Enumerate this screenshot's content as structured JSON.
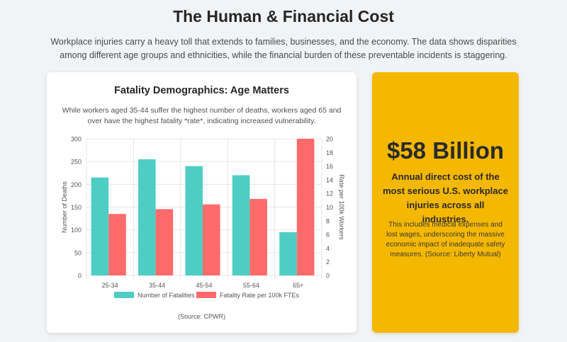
{
  "header": {
    "title": "The Human & Financial Cost",
    "intro": "Workplace injuries carry a heavy toll that extends to families, businesses, and the economy. The data shows disparities among different age groups and ethnicities, while the financial burden of these preventable incidents is staggering."
  },
  "chart_card": {
    "title": "Fatality Demographics: Age Matters",
    "subtitle": "While workers aged 35-44 suffer the highest number of deaths, workers aged 65 and over have the highest fatality *rate*, indicating increased vulnerability.",
    "source": "(Source: CPWR)"
  },
  "chart_data": {
    "type": "bar",
    "categories": [
      "25-34",
      "35-44",
      "45-54",
      "55-64",
      "65+"
    ],
    "series": [
      {
        "name": "Number of Fatalities",
        "axis": "left",
        "color": "#4ecdc4",
        "values": [
          215,
          255,
          240,
          220,
          95
        ]
      },
      {
        "name": "Fatality Rate per 100k FTEs",
        "axis": "right",
        "color": "#ff6b6b",
        "values": [
          9,
          9.7,
          10.4,
          11.2,
          20
        ]
      }
    ],
    "ylabel": "Number of Deaths",
    "y2label": "Rate per 100k Workers",
    "ylim": [
      0,
      300
    ],
    "y2lim": [
      0,
      20
    ],
    "yticks": [
      0,
      50,
      100,
      150,
      200,
      250,
      300
    ],
    "y2ticks": [
      0,
      2,
      4,
      6,
      8,
      10,
      12,
      14,
      16,
      18,
      20
    ],
    "legend": "bottom",
    "grid": true
  },
  "stat_card": {
    "value": "$58 Billion",
    "label": "Annual direct cost of the most serious U.S. workplace injuries across all industries.",
    "note": "This includes medical expenses and lost wages, underscoring the massive economic impact of inadequate safety measures. (Source: Liberty Mutual)",
    "color": "#f5b800"
  }
}
